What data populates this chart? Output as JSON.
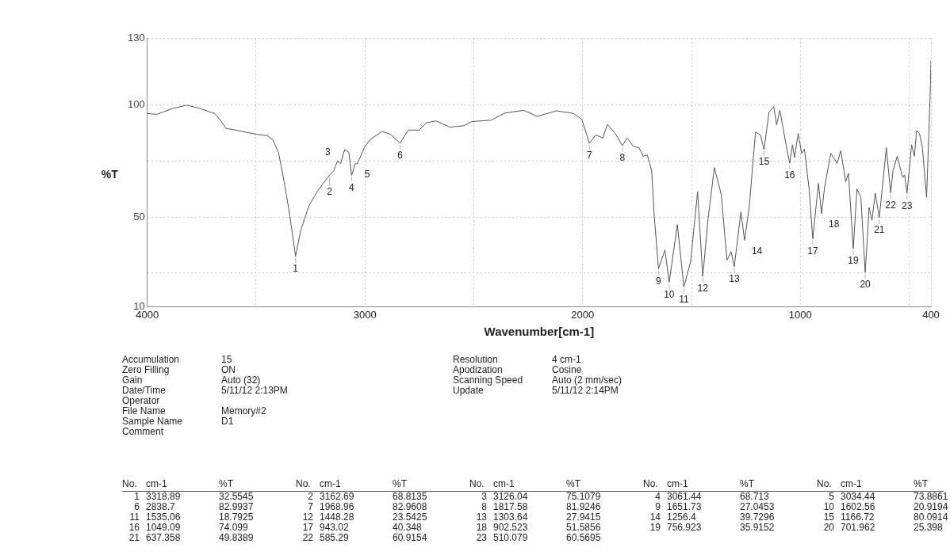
{
  "chart_data": {
    "type": "line",
    "xlabel": "Wavenumber[cm-1]",
    "ylabel": "%T",
    "xlim": [
      4000,
      400
    ],
    "xticks": [
      4000,
      {
        "value": 3500,
        "label": null
      },
      3000,
      {
        "value": 2500,
        "label": null
      },
      2000,
      {
        "value": 1500,
        "label": null
      },
      1000,
      {
        "value": 500,
        "label": null
      },
      400
    ],
    "ylim": [
      10,
      130
    ],
    "yticks": [
      10,
      {
        "value": 25,
        "label": null
      },
      50,
      {
        "value": 75,
        "label": null
      },
      100,
      130
    ],
    "grid": true,
    "legend": false,
    "marker": "none",
    "line_style": "solid",
    "series": [
      {
        "color": "#555555",
        "x": [
          4000,
          3956,
          3879,
          3816,
          3753,
          3689,
          3664,
          3638,
          3600,
          3499,
          3448,
          3423,
          3397,
          3372,
          3346,
          3318.89,
          3296,
          3258,
          3220,
          3182,
          3162.69,
          3143,
          3126.04,
          3112,
          3093,
          3074,
          3061.44,
          3044,
          3034.44,
          3004,
          2978,
          2921,
          2883,
          2838.7,
          2801,
          2750,
          2718,
          2674,
          2610,
          2547,
          2509,
          2420,
          2357,
          2270,
          2209,
          2119,
          2042,
          2004,
          1968.96,
          1940,
          1908,
          1886,
          1850,
          1817.58,
          1796,
          1767,
          1741,
          1722,
          1703,
          1683,
          1671,
          1651.73,
          1622,
          1602.56,
          1565,
          1535.06,
          1504,
          1472,
          1448.28,
          1424,
          1395,
          1363,
          1337,
          1318,
          1303.64,
          1273,
          1256.4,
          1235,
          1206,
          1183,
          1166.72,
          1144,
          1122,
          1109,
          1094,
          1068,
          1049.09,
          1036,
          1027,
          1010,
          994,
          981,
          959,
          943.02,
          917,
          902.523,
          889,
          860,
          831,
          814,
          792,
          779,
          756.923,
          740,
          722,
          701.962,
          684,
          671,
          656,
          637.358,
          605,
          585.29,
          574,
          555,
          530,
          521,
          510.079,
          489,
          476,
          466,
          453,
          440,
          420,
          404,
          400
        ],
        "values": [
          96.3,
          95.9,
          98.7,
          100,
          98.4,
          96.2,
          93.3,
          89.6,
          89,
          87,
          86.4,
          84.5,
          78.9,
          66.3,
          51.3,
          32.6,
          43.7,
          55,
          61.3,
          66.3,
          68.8,
          70.7,
          75.1,
          73.9,
          80.2,
          79,
          68.7,
          73.9,
          73.9,
          80.8,
          84.5,
          88.3,
          87,
          83,
          88.9,
          88.9,
          92.1,
          93,
          90.2,
          90.8,
          92.7,
          93.3,
          96.5,
          97.7,
          95,
          97.5,
          96.3,
          93.7,
          83,
          86.7,
          85.4,
          91.4,
          87.4,
          81.9,
          85.4,
          81.6,
          81,
          77.2,
          77.8,
          70.8,
          50.5,
          27,
          35.3,
          20.9,
          46.7,
          18.8,
          30.2,
          61.3,
          23.5,
          49.2,
          72.1,
          60,
          30.8,
          34.6,
          27.9,
          52.4,
          39.7,
          54.3,
          88,
          86.7,
          80.1,
          96.9,
          99.4,
          91.2,
          97.8,
          83.5,
          74.1,
          82.3,
          76.6,
          87.4,
          78.5,
          80.4,
          61.9,
          40.3,
          65.1,
          51.6,
          63.2,
          78.5,
          74,
          79.7,
          65.8,
          69.6,
          35.9,
          62.6,
          58.8,
          25.4,
          54.3,
          48.6,
          60.7,
          49.8,
          81,
          60.9,
          70.8,
          77.2,
          67.7,
          68.9,
          60.6,
          82.3,
          77.2,
          88.6,
          87.4,
          81.6,
          58.8,
          104,
          120
        ]
      }
    ],
    "annotations": [
      "Accumulation\t15",
      "Zero Filling\tON",
      "Gain\tAuto (32)",
      "Date/Time\t5/11/12 2:13PM",
      "Operator",
      "File Name\tMemory#2",
      "Sample Name\tD1",
      "Comment",
      "Resolution\t4 cm-1",
      "Apodization\tCosine",
      "Scanning Speed\tAuto (2 mm/sec)",
      "Update\t5/11/12 2:14PM",
      "No.\tcm-1\t%T",
      "1\t3318.89\t32.5545",
      "2\t3162.69\t68.8135",
      "3\t3126.04\t75.1079",
      "4\t3061.44\t68.713",
      "5\t3034.44\t73.8861",
      "6\t2838.7\t82.9937",
      "7\t1968.96\t82.9608",
      "8\t1817.58\t81.9246",
      "9\t1651.73\t27.0453",
      "10\t1602.56\t20.9194",
      "11\t1535.06\t18.7925",
      "12\t1448.28\t23.5425",
      "13\t1303.64\t27.9415",
      "14\t1256.4\t39.7296",
      "15\t1166.72\t80.0914",
      "16\t1049.09\t74.099",
      "17\t943.02\t40.348",
      "18\t902.523\t51.5856",
      "19\t756.923\t35.9152",
      "20\t701.962\t25.398",
      "21\t637.358\t49.8389",
      "22\t585.29\t60.9154",
      "23\t510.079\t60.5695",
      {
        "text": "1",
        "x": 3318.89,
        "y": 32.5545
      },
      {
        "text": "2",
        "x": 3162.69,
        "y": 68.8135
      },
      {
        "text": "3",
        "x": 3126.04,
        "y": 75.1079
      },
      {
        "text": "4",
        "x": 3061.44,
        "y": 68.713
      },
      {
        "text": "5",
        "x": 3034.44,
        "y": 73.8861
      },
      {
        "text": "6",
        "x": 2838.7,
        "y": 82.9937
      },
      {
        "text": "7",
        "x": 1968.96,
        "y": 82.9608
      },
      {
        "text": "8",
        "x": 1817.58,
        "y": 81.9246
      },
      {
        "text": "9",
        "x": 1651.73,
        "y": 27.0453
      },
      {
        "text": "10",
        "x": 1602.56,
        "y": 20.9194
      },
      {
        "text": "11",
        "x": 1535.06,
        "y": 18.7925
      },
      {
        "text": "12",
        "x": 1448.28,
        "y": 23.5425
      },
      {
        "text": "13",
        "x": 1303.64,
        "y": 27.9415
      },
      {
        "text": "14",
        "x": 1256.4,
        "y": 39.7296
      },
      {
        "text": "15",
        "x": 1166.72,
        "y": 80.0914
      },
      {
        "text": "16",
        "x": 1049.09,
        "y": 74.099
      },
      {
        "text": "17",
        "x": 943.02,
        "y": 40.348
      },
      {
        "text": "18",
        "x": 902.523,
        "y": 51.5856
      },
      {
        "text": "19",
        "x": 756.923,
        "y": 35.9152
      },
      {
        "text": "20",
        "x": 701.962,
        "y": 25.398
      },
      {
        "text": "21",
        "x": 637.358,
        "y": 49.8389
      },
      {
        "text": "22",
        "x": 585.29,
        "y": 60.9154
      },
      {
        "text": "23",
        "x": 510.079,
        "y": 60.5695
      }
    ]
  }
}
